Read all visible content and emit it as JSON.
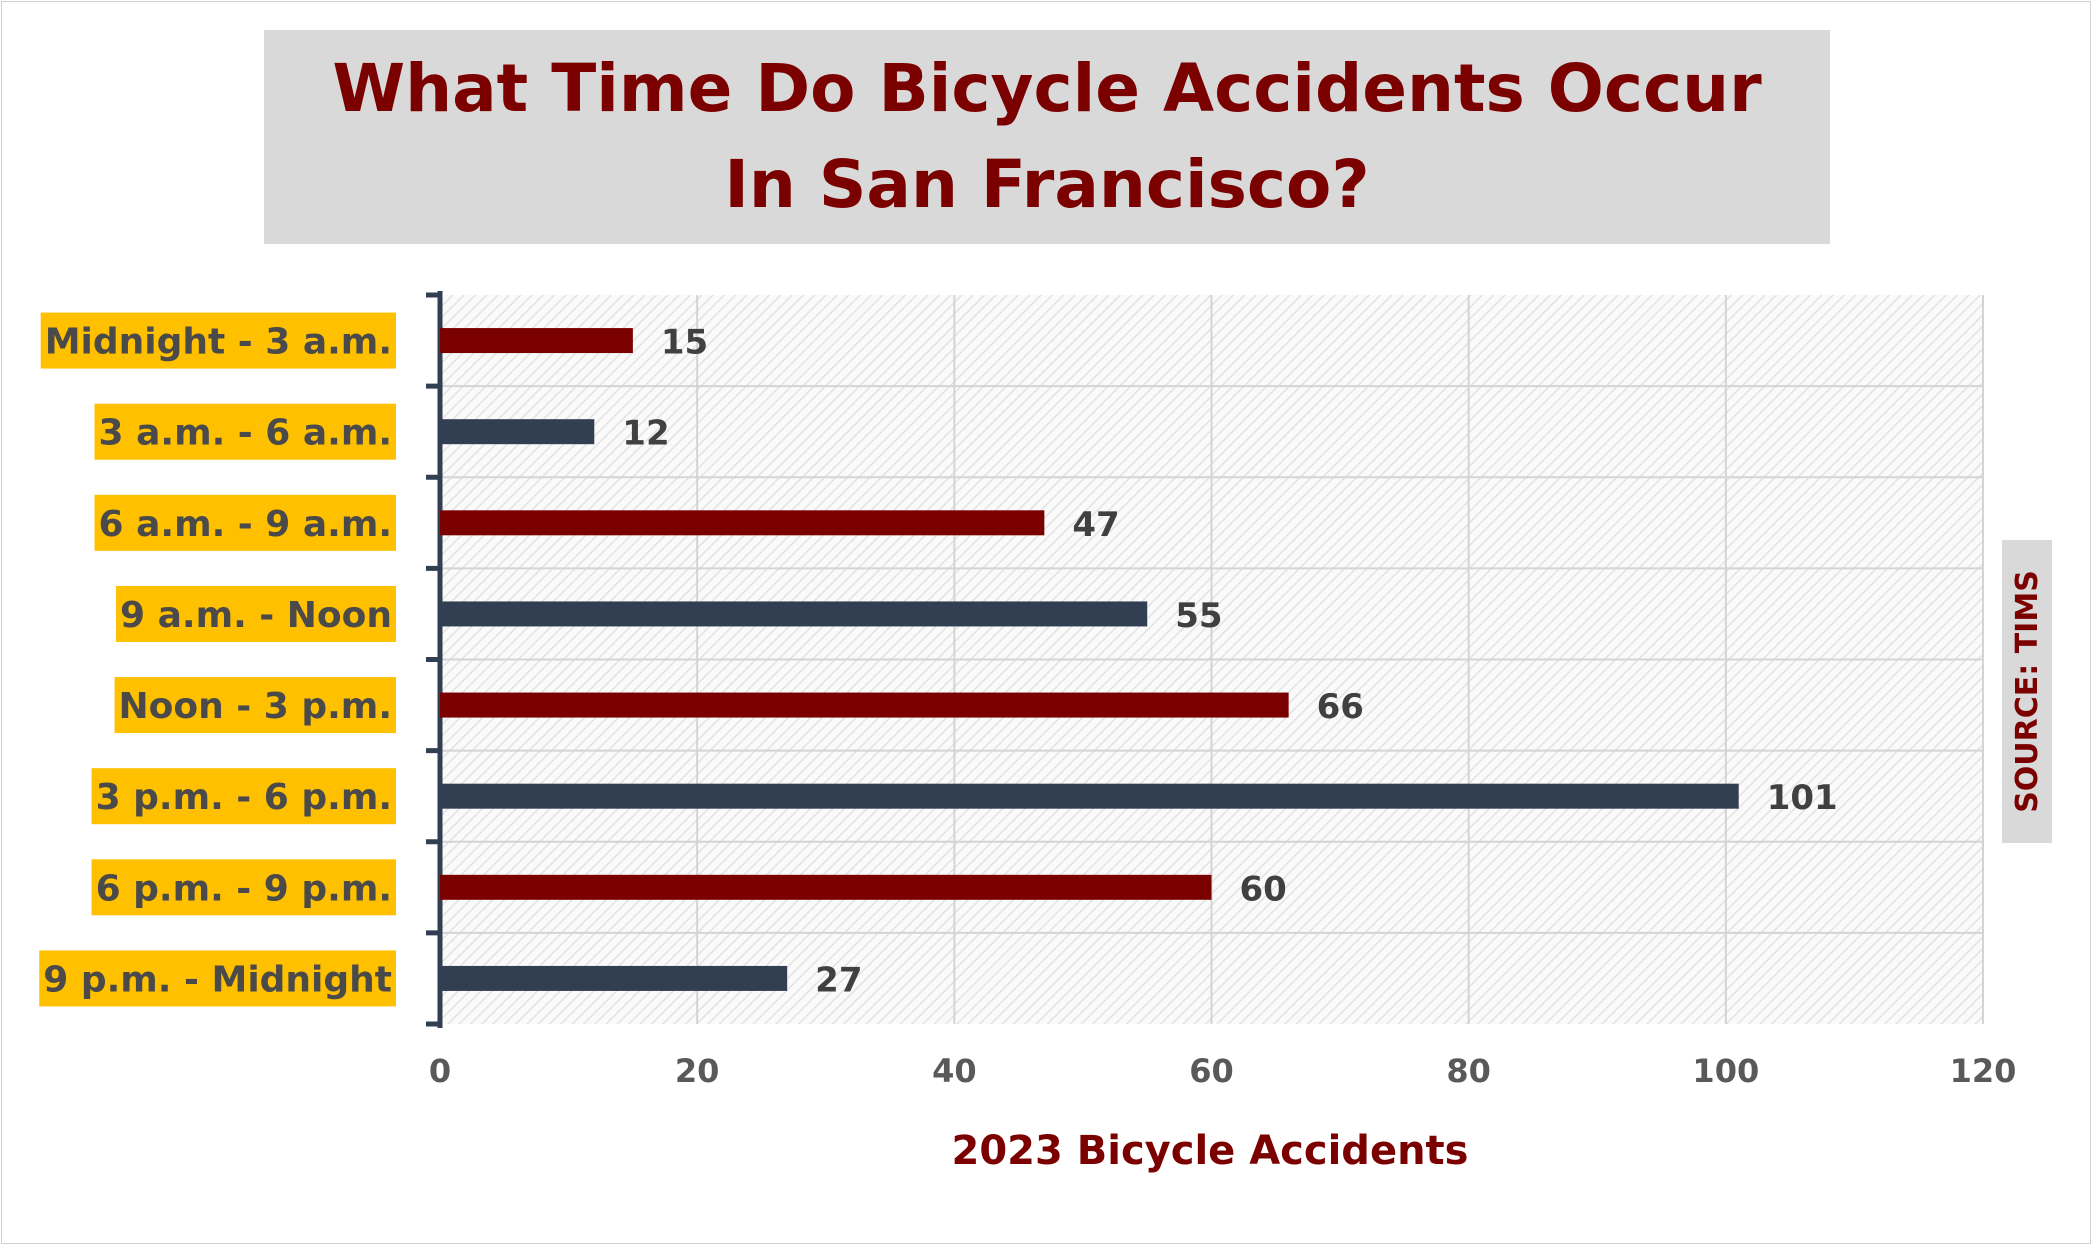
{
  "chart_data": {
    "type": "bar",
    "orientation": "horizontal",
    "title": "What Time Do Bicycle Accidents Occur In San Francisco?",
    "xlabel": "2023 Bicycle Accidents",
    "source": "SOURCE: TIMS",
    "categories": [
      "Midnight - 3 a.m.",
      "3 a.m. - 6 a.m.",
      "6 a.m. - 9 a.m.",
      "9 a.m. - Noon",
      "Noon - 3 p.m.",
      "3 p.m. - 6 p.m.",
      "6 p.m. - 9 p.m.",
      "9 p.m. - Midnight"
    ],
    "values": [
      15,
      12,
      47,
      55,
      66,
      101,
      60,
      27
    ],
    "value_labels": [
      "15",
      "12",
      "47",
      "55",
      "66",
      "101",
      "60",
      "27"
    ],
    "xlim": [
      0,
      120
    ],
    "xticks": [
      "0",
      "20",
      "40",
      "60",
      "80",
      "100",
      "120"
    ],
    "grid": true,
    "colors": {
      "bar_alternating": [
        "#7b0000",
        "#323f52"
      ],
      "category_label_bg": "#ffc000",
      "title_bg": "#d9d9d9",
      "title_text": "#7b0000"
    }
  }
}
